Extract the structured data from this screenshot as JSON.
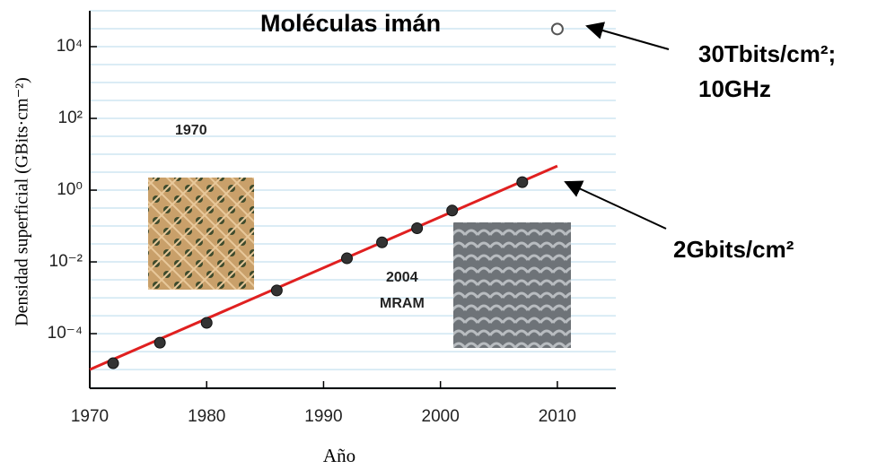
{
  "chart_data": {
    "type": "scatter",
    "title": "Moléculas imán",
    "x_label": "Año",
    "y_label": "Densidad superficial (GBits·cm⁻²)",
    "log_y": true,
    "grid": true,
    "xlim": [
      1970,
      2015
    ],
    "xticks": [
      1970,
      1980,
      1990,
      2000,
      2010
    ],
    "ylim": [
      3e-06,
      100000
    ],
    "yticks": [
      {
        "value": 0.0001,
        "label": "10⁻⁴"
      },
      {
        "value": 0.01,
        "label": "10⁻²"
      },
      {
        "value": 1,
        "label": "10⁰"
      },
      {
        "value": 100,
        "label": "10²"
      },
      {
        "value": 10000,
        "label": "10⁴"
      }
    ],
    "series": [
      {
        "color": "#333333",
        "x": [
          1972,
          1976,
          1980,
          1986,
          1992,
          1995,
          1998,
          2001,
          2007
        ],
        "values": [
          1.5e-05,
          5.6e-05,
          0.0002,
          0.0016,
          0.0126,
          0.035,
          0.087,
          0.27,
          1.67
        ]
      },
      {
        "color": "#555555",
        "x": [
          2010
        ],
        "values": [
          31000
        ],
        "open": true
      }
    ],
    "trend": {
      "color": "#e02020",
      "x": [
        1970,
        2010
      ],
      "values": [
        1e-05,
        4.7
      ]
    },
    "annotations": [
      "30Tbits/cm²;",
      "10GHz",
      "2Gbits/cm²",
      "1970",
      "2004",
      "MRAM"
    ]
  }
}
